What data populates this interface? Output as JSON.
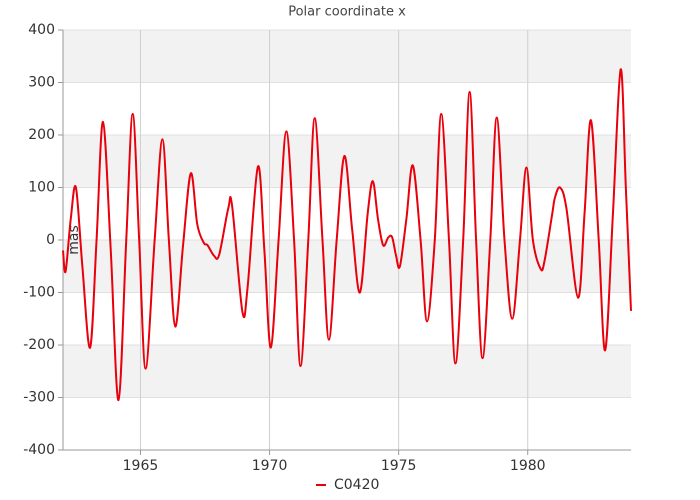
{
  "chart_data": {
    "type": "line",
    "title": "Polar coordinate x",
    "ylabel": "mas",
    "x": [
      1962.0,
      1962.1,
      1962.3,
      1962.5,
      1962.75,
      1963.05,
      1963.3,
      1963.55,
      1963.85,
      1964.15,
      1964.45,
      1964.7,
      1964.95,
      1965.2,
      1965.55,
      1965.85,
      1966.1,
      1966.35,
      1966.65,
      1966.95,
      1967.2,
      1967.45,
      1967.6,
      1967.85,
      1968.05,
      1968.4,
      1968.55,
      1968.95,
      1969.15,
      1969.55,
      1969.8,
      1970.05,
      1970.35,
      1970.65,
      1970.95,
      1971.2,
      1971.5,
      1971.75,
      1972.05,
      1972.3,
      1972.6,
      1972.9,
      1973.2,
      1973.5,
      1973.8,
      1974.0,
      1974.2,
      1974.4,
      1974.6,
      1974.75,
      1974.9,
      1975.05,
      1975.3,
      1975.55,
      1975.85,
      1976.1,
      1976.4,
      1976.65,
      1976.95,
      1977.2,
      1977.5,
      1977.75,
      1978.0,
      1978.25,
      1978.55,
      1978.8,
      1979.1,
      1979.4,
      1979.7,
      1979.95,
      1980.2,
      1980.5,
      1980.65,
      1980.95,
      1981.05,
      1981.25,
      1981.5,
      1981.95,
      1982.2,
      1982.45,
      1982.75,
      1983.0,
      1983.3,
      1983.6,
      1983.8,
      1984.0
    ],
    "series": [
      {
        "name": "C0420",
        "color": "#e8000b",
        "values": [
          -20,
          -60,
          40,
          100,
          -50,
          -205,
          0,
          225,
          -20,
          -305,
          0,
          240,
          0,
          -245,
          0,
          192,
          0,
          -165,
          -10,
          127,
          30,
          -5,
          -10,
          -30,
          -28,
          60,
          65,
          -137,
          -90,
          140,
          -20,
          -205,
          0,
          207,
          0,
          -240,
          0,
          232,
          0,
          -190,
          0,
          160,
          20,
          -100,
          50,
          112,
          40,
          -10,
          5,
          5,
          -30,
          -50,
          40,
          142,
          0,
          -155,
          0,
          240,
          0,
          -235,
          0,
          282,
          0,
          -225,
          0,
          233,
          0,
          -150,
          0,
          138,
          0,
          -55,
          -40,
          50,
          80,
          100,
          60,
          -110,
          50,
          228,
          0,
          -210,
          50,
          325,
          100,
          -135
        ]
      }
    ],
    "xlim": [
      1962.0,
      1984.0
    ],
    "xticks": [
      1965,
      1970,
      1975,
      1980
    ],
    "ylim": [
      -400,
      400
    ],
    "yticks": [
      -400,
      -300,
      -200,
      -100,
      0,
      100,
      200,
      300,
      400
    ],
    "grid": true,
    "legend": "bottom"
  }
}
